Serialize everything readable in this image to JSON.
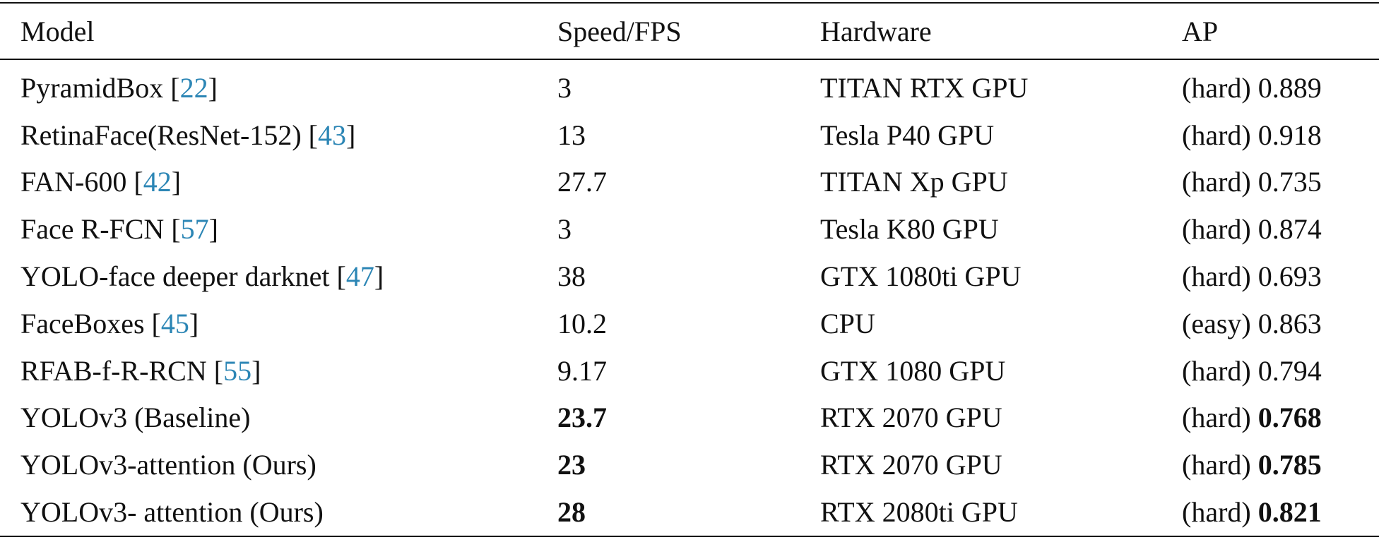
{
  "table": {
    "headers": [
      "Model",
      "Speed/FPS",
      "Hardware",
      "AP"
    ],
    "rows": [
      {
        "model": "PyramidBox",
        "ref": "22",
        "speed": "3",
        "hardware": "TITAN RTX GPU",
        "ap_prefix": "(hard)",
        "ap_value": "0.889"
      },
      {
        "model": "RetinaFace(ResNet-152)",
        "ref": "43",
        "speed": "13",
        "hardware": "Tesla P40 GPU",
        "ap_prefix": "(hard)",
        "ap_value": "0.918"
      },
      {
        "model": "FAN-600",
        "ref": "42",
        "speed": "27.7",
        "hardware": "TITAN Xp GPU",
        "ap_prefix": "(hard)",
        "ap_value": "0.735"
      },
      {
        "model": "Face R-FCN",
        "ref": "57",
        "speed": "3",
        "hardware": "Tesla K80 GPU",
        "ap_prefix": "(hard)",
        "ap_value": "0.874"
      },
      {
        "model": "YOLO-face deeper darknet",
        "ref": "47",
        "speed": "38",
        "hardware": "GTX 1080ti GPU",
        "ap_prefix": "(hard)",
        "ap_value": "0.693"
      },
      {
        "model": "FaceBoxes",
        "ref": "45",
        "speed": "10.2",
        "hardware": "CPU",
        "ap_prefix": "(easy)",
        "ap_value": "0.863"
      },
      {
        "model": "RFAB-f-R-RCN",
        "ref": "55",
        "speed": "9.17",
        "hardware": "GTX 1080 GPU",
        "ap_prefix": "(hard)",
        "ap_value": "0.794"
      },
      {
        "model": "YOLOv3 (Baseline)",
        "ref": "",
        "speed": "23.7",
        "hardware": "RTX 2070 GPU",
        "ap_prefix": "(hard)",
        "ap_value": "0.768",
        "bold": true
      },
      {
        "model": "YOLOv3-attention (Ours)",
        "ref": "",
        "speed": "23",
        "hardware": "RTX 2070 GPU",
        "ap_prefix": "(hard)",
        "ap_value": "0.785",
        "bold": true
      },
      {
        "model": "YOLOv3- attention (Ours)",
        "ref": "",
        "speed": "28",
        "hardware": "RTX 2080ti GPU",
        "ap_prefix": "(hard)",
        "ap_value": "0.821",
        "bold": true
      }
    ],
    "colors": {
      "text": "#111111",
      "reference_link": "#2c86b5",
      "rule": "#111111"
    }
  }
}
